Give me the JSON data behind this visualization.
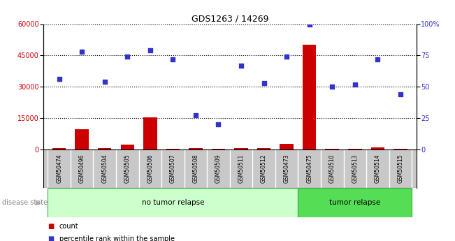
{
  "title": "GDS1263 / 14269",
  "samples": [
    "GSM50474",
    "GSM50496",
    "GSM50504",
    "GSM50505",
    "GSM50506",
    "GSM50507",
    "GSM50508",
    "GSM50509",
    "GSM50511",
    "GSM50512",
    "GSM50473",
    "GSM50475",
    "GSM50510",
    "GSM50513",
    "GSM50514",
    "GSM50515"
  ],
  "counts": [
    800,
    9500,
    600,
    2200,
    15500,
    300,
    600,
    200,
    800,
    500,
    2800,
    50000,
    400,
    300,
    900,
    400
  ],
  "percentiles": [
    56,
    78,
    54,
    74,
    79,
    72,
    27,
    20,
    67,
    53,
    74,
    100,
    50,
    52,
    72,
    44
  ],
  "no_tumor_count": 11,
  "tumor_count": 5,
  "disease_state_label": "disease state",
  "group1_label": "no tumor relapse",
  "group2_label": "tumor relapse",
  "legend_count": "count",
  "legend_percentile": "percentile rank within the sample",
  "left_axis_color": "#cc0000",
  "right_axis_color": "#3333cc",
  "bar_color": "#cc0000",
  "dot_color": "#3333cc",
  "ylim_left": [
    0,
    60000
  ],
  "ylim_right": [
    0,
    100
  ],
  "yticks_left": [
    0,
    15000,
    30000,
    45000,
    60000
  ],
  "yticks_right": [
    0,
    25,
    50,
    75,
    100
  ],
  "background_color": "#ffffff",
  "plot_bg_color": "#ffffff",
  "sample_bg_color": "#c8c8c8",
  "group1_bg_color": "#ccffcc",
  "group2_bg_color": "#55dd55"
}
